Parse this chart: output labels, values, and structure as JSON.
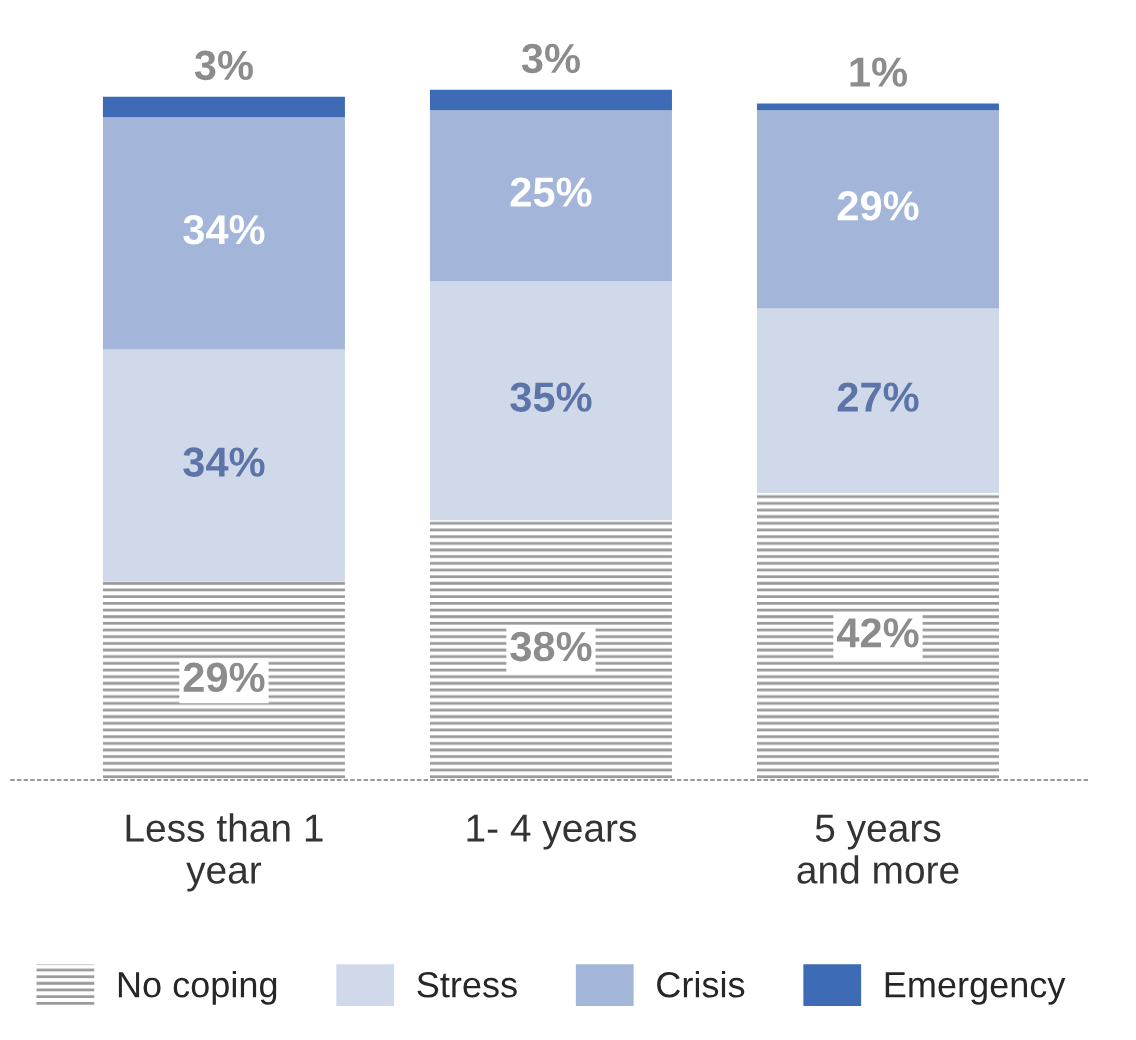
{
  "chart_data": {
    "type": "bar",
    "stacked": true,
    "legend": "bottom",
    "grid": false,
    "categories": [
      "Less than 1\nyear",
      "1- 4 years",
      "5 years\nand more"
    ],
    "series": [
      {
        "name": "No coping",
        "color": "#9a9a9a",
        "values": [
          29,
          38,
          42
        ],
        "value_labels": [
          "29%",
          "38%",
          "42%"
        ]
      },
      {
        "name": "Stress",
        "color": "#d0d9ea",
        "values": [
          34,
          35,
          27
        ],
        "value_labels": [
          "34%",
          "35%",
          "27%"
        ]
      },
      {
        "name": "Crisis",
        "color": "#a3b6d9",
        "values": [
          34,
          25,
          29
        ],
        "value_labels": [
          "34%",
          "25%",
          "29%"
        ]
      },
      {
        "name": "Emergency",
        "color": "#3e6bb5",
        "values": [
          3,
          3,
          1
        ],
        "value_labels": [
          "3%",
          "3%",
          "1%"
        ]
      }
    ]
  }
}
